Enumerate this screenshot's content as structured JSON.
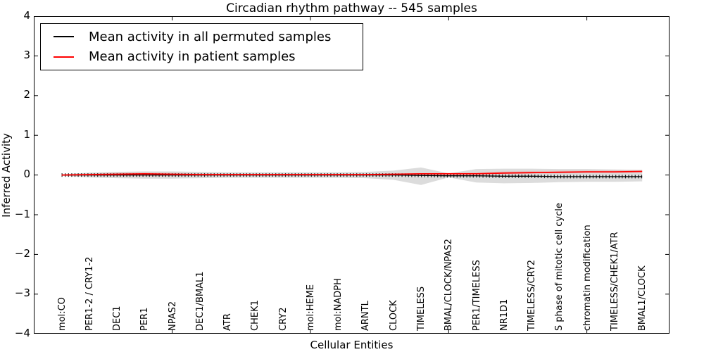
{
  "title": "Circadian rhythm pathway -- 545 samples",
  "xlabel": "Cellular Entities",
  "ylabel": "Inferred Activity",
  "legend": [
    {
      "label": "Mean activity in all permuted samples",
      "color": "#000000"
    },
    {
      "label": "Mean activity in patient samples",
      "color": "#ff0000"
    }
  ],
  "chart_data": {
    "type": "line",
    "title": "Circadian rhythm pathway -- 545 samples",
    "xlabel": "Cellular Entities",
    "ylabel": "Inferred Activity",
    "ylim": [
      -4,
      4
    ],
    "yticks": [
      -4,
      -3,
      -2,
      -1,
      0,
      1,
      2,
      3,
      4
    ],
    "xtick_indices": [
      4,
      9,
      14,
      19
    ],
    "grid": false,
    "legend_position": "upper left",
    "categories": [
      "mol:CO",
      "PER1-2 / CRY1-2",
      "DEC1",
      "PER1",
      "NPAS2",
      "DEC1/BMAL1",
      "ATR",
      "CHEK1",
      "CRY2",
      "mol:HEME",
      "mol:NADPH",
      "ARNTL",
      "CLOCK",
      "TIMELESS",
      "BMAL/CLOCK/NPAS2",
      "PER1/TIMELESS",
      "NR1D1",
      "TIMELESS/CRY2",
      "S phase of mitotic cell cycle",
      "chromatin modification",
      "TIMELESS/CHEK1/ATR",
      "BMAL1/CLOCK"
    ],
    "series": [
      {
        "name": "Mean activity in all permuted samples",
        "color": "#000000",
        "values": [
          0.0,
          0.0,
          0.0,
          0.0,
          0.0,
          0.0,
          0.0,
          0.0,
          0.0,
          0.0,
          0.0,
          0.0,
          0.0,
          -0.01,
          -0.02,
          -0.02,
          -0.03,
          -0.03,
          -0.04,
          -0.04,
          -0.04,
          -0.04
        ]
      },
      {
        "name": "Mean activity in patient samples",
        "color": "#ff0000",
        "values": [
          0.0,
          0.01,
          0.02,
          0.03,
          0.02,
          0.01,
          0.01,
          0.01,
          0.01,
          0.01,
          0.01,
          0.01,
          0.02,
          0.03,
          0.03,
          0.03,
          0.05,
          0.06,
          0.07,
          0.08,
          0.08,
          0.09
        ]
      }
    ],
    "bands": [
      {
        "name": "permuted-std",
        "color": "#808080",
        "opacity": 0.28,
        "upper": [
          0.02,
          0.06,
          0.08,
          0.09,
          0.09,
          0.08,
          0.07,
          0.07,
          0.07,
          0.07,
          0.07,
          0.08,
          0.11,
          0.19,
          0.04,
          0.15,
          0.16,
          0.16,
          0.15,
          0.15,
          0.14,
          0.13
        ],
        "lower": [
          -0.02,
          -0.06,
          -0.08,
          -0.09,
          -0.09,
          -0.08,
          -0.07,
          -0.07,
          -0.07,
          -0.07,
          -0.07,
          -0.08,
          -0.12,
          -0.25,
          -0.06,
          -0.19,
          -0.21,
          -0.2,
          -0.18,
          -0.17,
          -0.17,
          -0.16
        ]
      },
      {
        "name": "patient-std",
        "color": "#ff0000",
        "opacity": 0.1,
        "upper": [
          0.01,
          0.04,
          0.06,
          0.07,
          0.06,
          0.04,
          0.03,
          0.02,
          0.02,
          0.02,
          0.02,
          0.02,
          0.03,
          0.05,
          0.06,
          0.07,
          0.09,
          0.1,
          0.11,
          0.11,
          0.12,
          0.12
        ],
        "lower": [
          -0.01,
          -0.02,
          -0.03,
          -0.03,
          -0.03,
          -0.02,
          -0.01,
          -0.01,
          -0.01,
          -0.01,
          -0.01,
          -0.01,
          0.0,
          0.01,
          0.01,
          0.01,
          0.02,
          0.03,
          0.04,
          0.05,
          0.05,
          0.06
        ]
      }
    ]
  }
}
